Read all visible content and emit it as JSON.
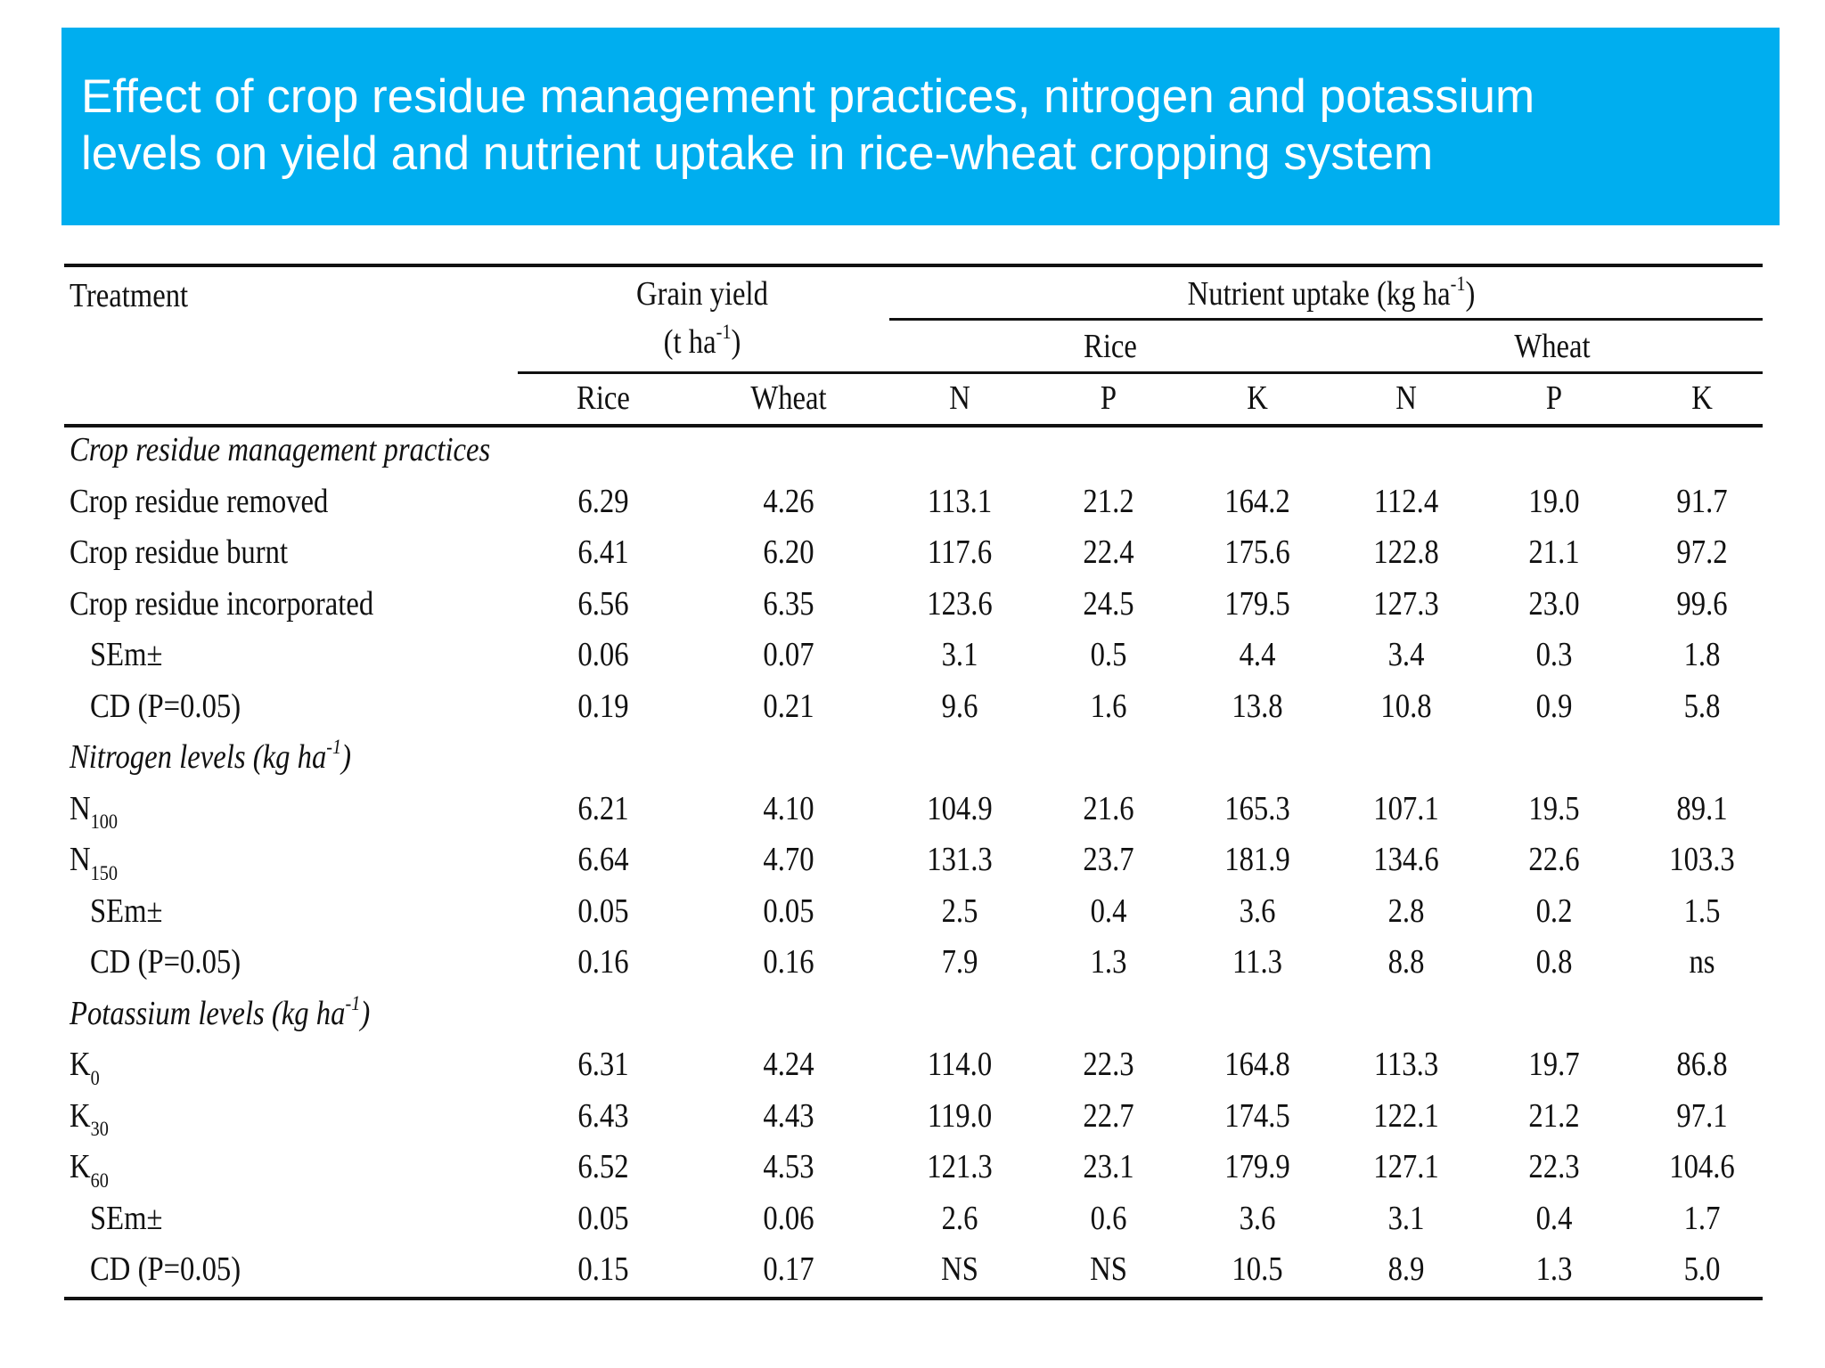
{
  "title": {
    "line1": "Effect of crop residue management practices, nitrogen and potassium",
    "line2": "levels on yield and nutrient uptake in rice-wheat cropping system"
  },
  "header": {
    "treatment": "Treatment",
    "grain_yield": "Grain yield",
    "grain_yield_unit_pre": "(t ha",
    "grain_yield_unit_sup": "-1",
    "grain_yield_unit_post": ")",
    "nutrient_uptake_pre": "Nutrient uptake (kg ha",
    "nutrient_uptake_sup": "-1",
    "nutrient_uptake_post": ")",
    "rice_group": "Rice",
    "wheat_group": "Wheat",
    "columns": [
      "Rice",
      "Wheat",
      "N",
      "P",
      "K",
      "N",
      "P",
      "K"
    ]
  },
  "sections": [
    {
      "title_pre": "Crop residue management practices",
      "title_sup": "",
      "title_post": "",
      "rows": [
        {
          "label": "Crop residue removed",
          "sub": "",
          "indent": false,
          "values": [
            "6.29",
            "4.26",
            "113.1",
            "21.2",
            "164.2",
            "112.4",
            "19.0",
            "91.7"
          ]
        },
        {
          "label": "Crop residue burnt",
          "sub": "",
          "indent": false,
          "values": [
            "6.41",
            "6.20",
            "117.6",
            "22.4",
            "175.6",
            "122.8",
            "21.1",
            "97.2"
          ]
        },
        {
          "label": "Crop residue incorporated",
          "sub": "",
          "indent": false,
          "values": [
            "6.56",
            "6.35",
            "123.6",
            "24.5",
            "179.5",
            "127.3",
            "23.0",
            "99.6"
          ]
        },
        {
          "label": "SEm±",
          "sub": "",
          "indent": true,
          "values": [
            "0.06",
            "0.07",
            "3.1",
            "0.5",
            "4.4",
            "3.4",
            "0.3",
            "1.8"
          ]
        },
        {
          "label": "CD (P=0.05)",
          "sub": "",
          "indent": true,
          "values": [
            "0.19",
            "0.21",
            "9.6",
            "1.6",
            "13.8",
            "10.8",
            "0.9",
            "5.8"
          ]
        }
      ]
    },
    {
      "title_pre": "Nitrogen levels (kg ha",
      "title_sup": "-1",
      "title_post": ")",
      "rows": [
        {
          "label": "N",
          "sub": "100",
          "indent": false,
          "values": [
            "6.21",
            "4.10",
            "104.9",
            "21.6",
            "165.3",
            "107.1",
            "19.5",
            "89.1"
          ]
        },
        {
          "label": "N",
          "sub": "150",
          "indent": false,
          "values": [
            "6.64",
            "4.70",
            "131.3",
            "23.7",
            "181.9",
            "134.6",
            "22.6",
            "103.3"
          ]
        },
        {
          "label": "SEm±",
          "sub": "",
          "indent": true,
          "values": [
            "0.05",
            "0.05",
            "2.5",
            "0.4",
            "3.6",
            "2.8",
            "0.2",
            "1.5"
          ]
        },
        {
          "label": "CD (P=0.05)",
          "sub": "",
          "indent": true,
          "values": [
            "0.16",
            "0.16",
            "7.9",
            "1.3",
            "11.3",
            "8.8",
            "0.8",
            "ns"
          ]
        }
      ]
    },
    {
      "title_pre": "Potassium levels (kg ha",
      "title_sup": "-1",
      "title_post": ")",
      "rows": [
        {
          "label": "K",
          "sub": "0",
          "indent": false,
          "values": [
            "6.31",
            "4.24",
            "114.0",
            "22.3",
            "164.8",
            "113.3",
            "19.7",
            "86.8"
          ]
        },
        {
          "label": "K",
          "sub": "30",
          "indent": false,
          "values": [
            "6.43",
            "4.43",
            "119.0",
            "22.7",
            "174.5",
            "122.1",
            "21.2",
            "97.1"
          ]
        },
        {
          "label": "K",
          "sub": "60",
          "indent": false,
          "values": [
            "6.52",
            "4.53",
            "121.3",
            "23.1",
            "179.9",
            "127.1",
            "22.3",
            "104.6"
          ]
        },
        {
          "label": "SEm±",
          "sub": "",
          "indent": true,
          "values": [
            "0.05",
            "0.06",
            "2.6",
            "0.6",
            "3.6",
            "3.1",
            "0.4",
            "1.7"
          ]
        },
        {
          "label": "CD (P=0.05)",
          "sub": "",
          "indent": true,
          "values": [
            "0.15",
            "0.17",
            "NS",
            "NS",
            "10.5",
            "8.9",
            "1.3",
            "5.0"
          ]
        }
      ]
    }
  ]
}
